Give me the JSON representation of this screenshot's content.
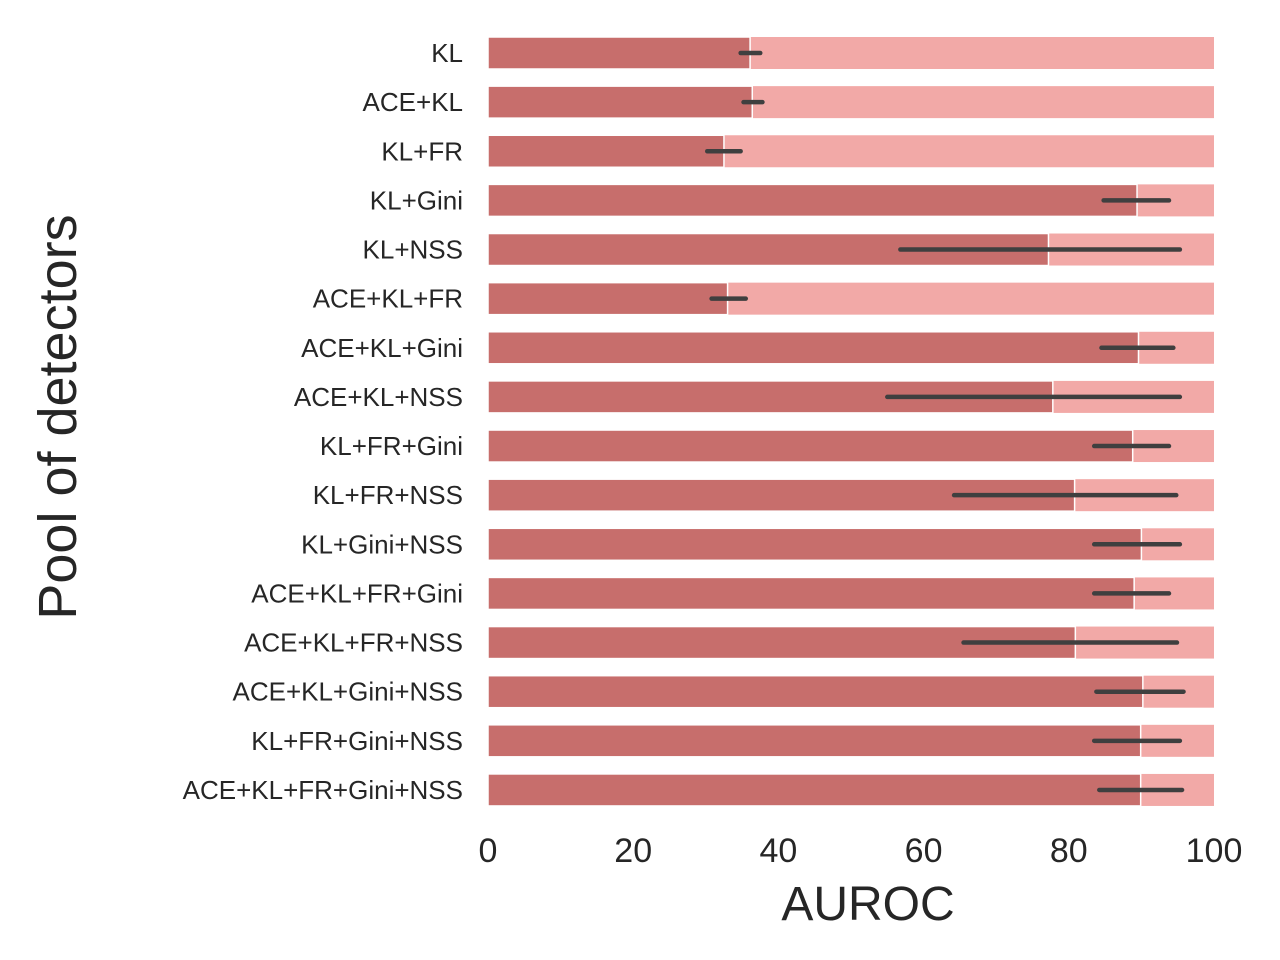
{
  "chart_data": {
    "type": "bar",
    "orientation": "horizontal",
    "xlabel": "AUROC",
    "ylabel": "Pool of detectors",
    "xlim": [
      0,
      100
    ],
    "xticks": [
      "0",
      "20",
      "40",
      "60",
      "80",
      "100"
    ],
    "grid": false,
    "categories": [
      "KL",
      "ACE+KL",
      "KL+FR",
      "KL+Gini",
      "KL+NSS",
      "ACE+KL+FR",
      "ACE+KL+Gini",
      "ACE+KL+NSS",
      "KL+FR+Gini",
      "KL+FR+NSS",
      "KL+Gini+NSS",
      "ACE+KL+FR+Gini",
      "ACE+KL+FR+NSS",
      "ACE+KL+Gini+NSS",
      "KL+FR+Gini+NSS",
      "ACE+KL+FR+Gini+NSS"
    ],
    "series": [
      {
        "values": [
          100,
          100,
          100,
          100,
          100,
          100,
          100,
          100,
          100,
          100,
          100,
          100,
          100,
          100,
          100,
          100
        ],
        "color": "#f2a9a7"
      },
      {
        "values": [
          36.1,
          36.4,
          32.5,
          89.4,
          77.2,
          33.0,
          89.6,
          77.8,
          88.8,
          80.8,
          90.0,
          89.0,
          80.9,
          90.2,
          89.9,
          89.9
        ],
        "error_low": [
          34.8,
          35.2,
          30.2,
          84.8,
          56.8,
          30.8,
          84.5,
          55.0,
          83.5,
          64.2,
          83.5,
          83.5,
          65.5,
          83.8,
          83.5,
          84.2
        ],
        "error_high": [
          37.5,
          37.8,
          34.8,
          93.8,
          95.3,
          35.5,
          94.4,
          95.3,
          93.8,
          94.8,
          95.3,
          93.8,
          94.9,
          95.8,
          95.3,
          95.6
        ],
        "color": "#c76e6c"
      }
    ]
  }
}
